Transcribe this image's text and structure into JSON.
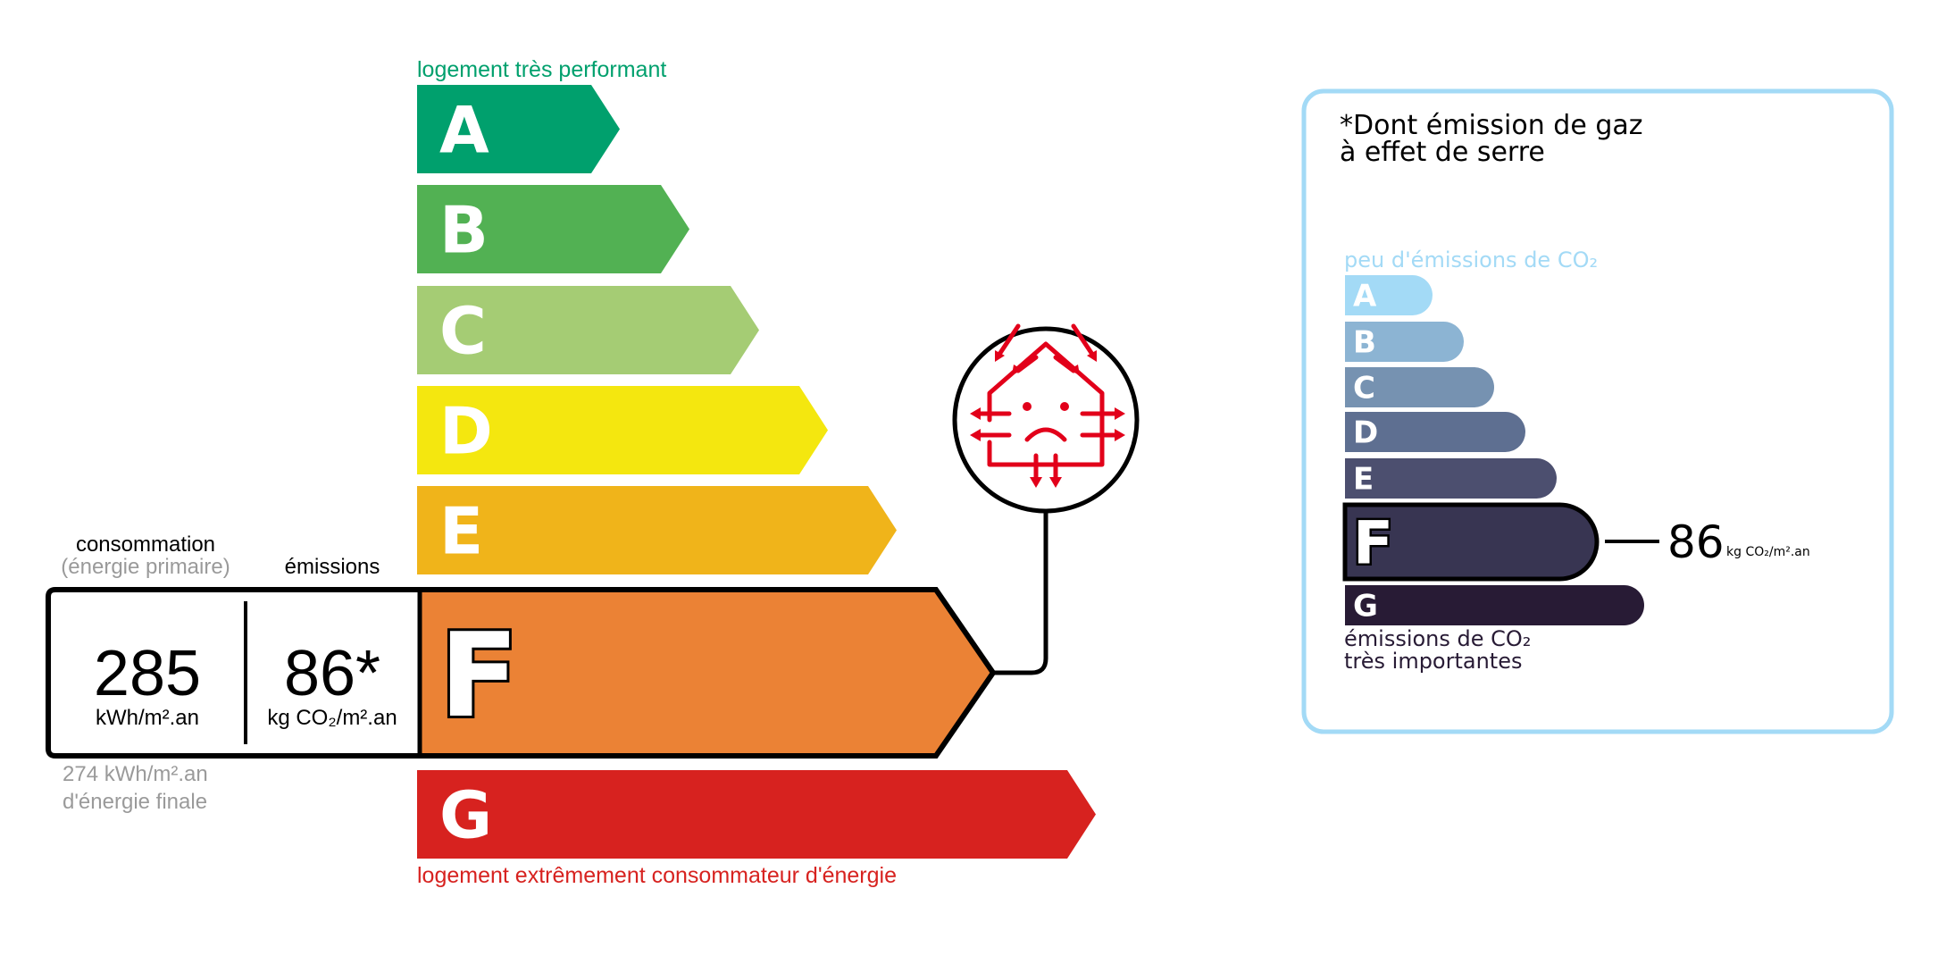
{
  "energy": {
    "top_label": "logement très performant",
    "bottom_label": "logement extrêmement consommateur d'énergie",
    "classes": [
      {
        "letter": "A",
        "color": "#00a06d"
      },
      {
        "letter": "B",
        "color": "#52b153"
      },
      {
        "letter": "C",
        "color": "#a5cc74"
      },
      {
        "letter": "D",
        "color": "#f4e70f"
      },
      {
        "letter": "E",
        "color": "#f0b41a"
      },
      {
        "letter": "F",
        "color": "#eb8235"
      },
      {
        "letter": "G",
        "color": "#d7221f"
      }
    ],
    "current_class": "F",
    "consumption_label": "consommation",
    "consumption_sublabel": "(énergie primaire)",
    "emissions_label": "émissions",
    "consumption_value": "285",
    "consumption_unit": "kWh/m².an",
    "emissions_value": "86*",
    "emissions_unit": "kg CO₂/m².an",
    "final_energy_line1": "274 kWh/m².an",
    "final_energy_line2": "d'énergie finale",
    "icon": "sad-house-heat-loss-icon",
    "icon_color": "#e2001a"
  },
  "ges": {
    "title_line1": "*Dont émission de gaz",
    "title_line2": "à effet de serre",
    "top_label": "peu d'émissions de CO₂",
    "bottom_label_line1": "émissions de CO₂",
    "bottom_label_line2": "très importantes",
    "classes": [
      {
        "letter": "A",
        "color": "#a3daf6"
      },
      {
        "letter": "B",
        "color": "#8cb4d3"
      },
      {
        "letter": "C",
        "color": "#7692b1"
      },
      {
        "letter": "D",
        "color": "#5e6f91"
      },
      {
        "letter": "E",
        "color": "#4c4f6f"
      },
      {
        "letter": "F",
        "color": "#383552"
      },
      {
        "letter": "G",
        "color": "#281b35"
      }
    ],
    "current_class": "F",
    "value": "86",
    "unit": "kg CO₂/m².an",
    "border_color": "#a3daf6"
  }
}
